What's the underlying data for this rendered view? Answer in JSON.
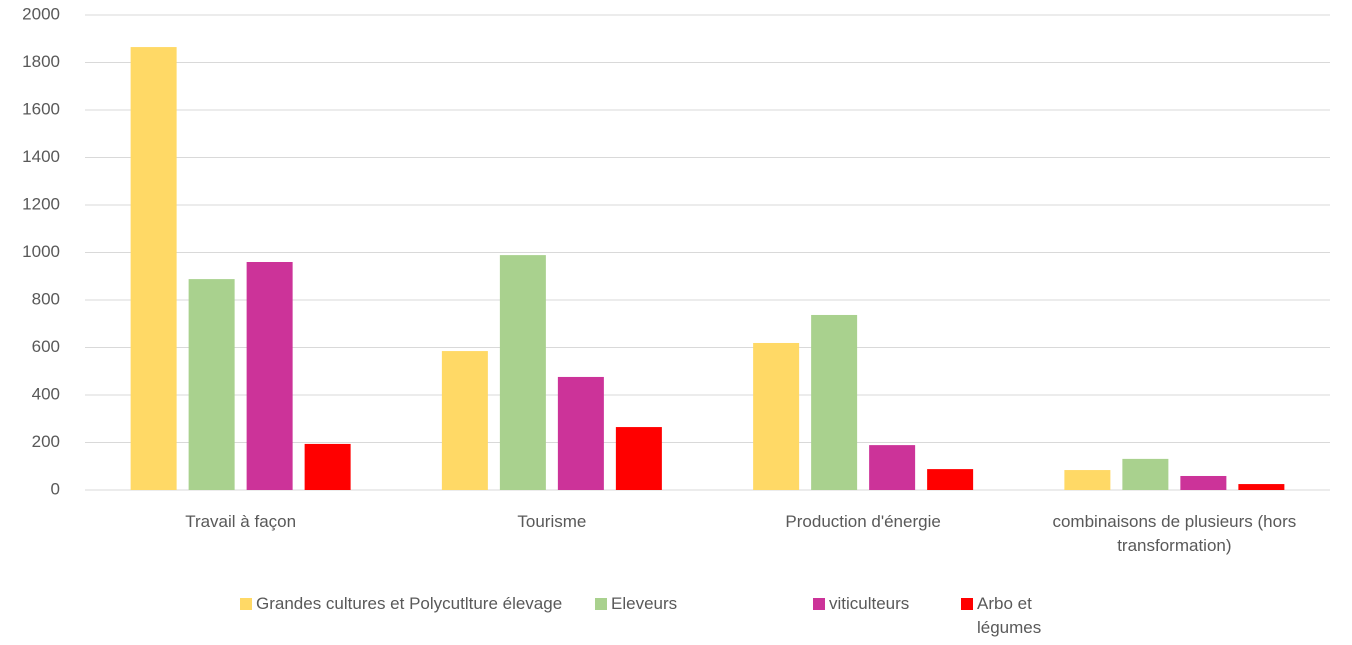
{
  "chart_data": {
    "type": "bar",
    "categories": [
      "Travail à façon",
      "Tourisme",
      "Production d'énergie",
      "combinaisons de plusieurs (hors transformation)"
    ],
    "series": [
      {
        "name": "Grandes cultures et Polycutlture élevage",
        "color": "#ffd966",
        "values": [
          1865,
          585,
          619,
          84
        ]
      },
      {
        "name": "Eleveurs",
        "color": "#a9d18e",
        "values": [
          888,
          989,
          737,
          131
        ]
      },
      {
        "name": "viticulteurs",
        "color": "#cc3399",
        "values": [
          960,
          476,
          189,
          59
        ]
      },
      {
        "name": "Arbo et légumes",
        "color": "#ff0000",
        "values": [
          194,
          265,
          88,
          25
        ]
      }
    ],
    "ylim": [
      0,
      2000
    ],
    "yticks": [
      0,
      200,
      400,
      600,
      800,
      1000,
      1200,
      1400,
      1600,
      1800,
      2000
    ],
    "grid": true
  }
}
